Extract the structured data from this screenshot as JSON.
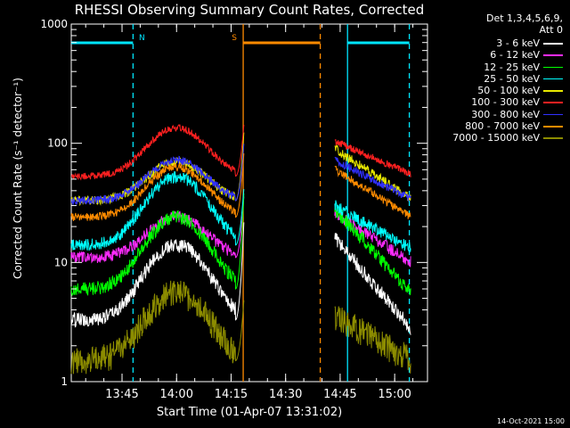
{
  "chart_data": {
    "type": "line",
    "title": "RHESSI Observing Summary Count Rates, Corrected",
    "xlabel": "Start Time (01-Apr-07 13:31:02)",
    "ylabel": "Corrected Count Rate (s⁻¹ detector⁻¹)",
    "yscale": "log",
    "ylim": [
      1,
      1000
    ],
    "xlim_minutes_after_start": [
      0,
      98
    ],
    "ytick_labels": [
      "1",
      "10",
      "100",
      "1000"
    ],
    "xtick_labels": [
      "13:45",
      "14:00",
      "14:15",
      "14:30",
      "14:45",
      "15:00"
    ],
    "xtick_minutes_after_start": [
      13.97,
      28.97,
      43.97,
      58.97,
      73.97,
      88.97
    ],
    "detector_info": [
      "Det 1,3,4,5,6,9,",
      "Att 0"
    ],
    "timestamp": "14-Oct-2021 15:00",
    "data_gap_minutes": [
      47.5,
      72.5
    ],
    "flag_bars": [
      {
        "label": "N",
        "color": "#00e5ff",
        "spans": [
          [
            0,
            17
          ],
          [
            76,
            93
          ]
        ]
      },
      {
        "label": "S",
        "color": "#ff8a00",
        "spans": [
          [
            47.3,
            68.5
          ]
        ]
      }
    ],
    "flag_lines": [
      {
        "color": "#00e5ff",
        "style": "dashed",
        "x": 17
      },
      {
        "color": "#00e5ff",
        "style": "solid",
        "x": 76
      },
      {
        "color": "#00e5ff",
        "style": "dashed",
        "x": 93
      },
      {
        "color": "#ff8a00",
        "style": "solid",
        "x": 47.3
      },
      {
        "color": "#ff8a00",
        "style": "dashed",
        "x": 68.5
      }
    ],
    "series": [
      {
        "name": "3 - 6 keV",
        "color": "#ffffff",
        "base": 3.3,
        "peak": 14,
        "noise": 0.06,
        "post_start": 16,
        "post_end": 2.8
      },
      {
        "name": "6 - 12 keV",
        "color": "#ff2bff",
        "base": 11,
        "peak": 24,
        "noise": 0.05,
        "post_start": 26,
        "post_end": 10
      },
      {
        "name": "12 - 25 keV",
        "color": "#00ff00",
        "base": 6,
        "peak": 24,
        "noise": 0.06,
        "post_start": 28,
        "post_end": 5.5
      },
      {
        "name": "25 - 50 keV",
        "color": "#00ffff",
        "base": 14,
        "peak": 52,
        "noise": 0.05,
        "post_start": 30,
        "post_end": 13
      },
      {
        "name": "50 - 100 keV",
        "color": "#e8e800",
        "base": 33,
        "peak": 70,
        "noise": 0.04,
        "post_start": 90,
        "post_end": 34
      },
      {
        "name": "100 - 300 keV",
        "color": "#ff2020",
        "base": 53,
        "peak": 135,
        "noise": 0.03,
        "post_start": 104,
        "post_end": 55
      },
      {
        "name": "300 - 800 keV",
        "color": "#3030ff",
        "base": 33,
        "peak": 72,
        "noise": 0.035,
        "post_start": 72,
        "post_end": 34
      },
      {
        "name": "800 - 7000 keV",
        "color": "#ff8c00",
        "base": 24,
        "peak": 63,
        "noise": 0.035,
        "post_start": 60,
        "post_end": 24
      },
      {
        "name": "7000 - 15000 keV",
        "color": "#8c8c00",
        "base": 1.5,
        "peak": 5.5,
        "noise": 0.12,
        "post_start": 3.5,
        "post_end": 1.5
      }
    ]
  }
}
